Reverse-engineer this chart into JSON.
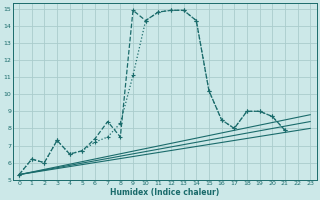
{
  "bg_color": "#cce8e8",
  "grid_color": "#aacccc",
  "line_color": "#1a6b6b",
  "xlabel": "Humidex (Indice chaleur)",
  "xlim": [
    -0.5,
    23.5
  ],
  "ylim": [
    5,
    15.3
  ],
  "xticks": [
    0,
    1,
    2,
    3,
    4,
    5,
    6,
    7,
    8,
    9,
    10,
    11,
    12,
    13,
    14,
    15,
    16,
    17,
    18,
    19,
    20,
    21,
    22,
    23
  ],
  "yticks": [
    5,
    6,
    7,
    8,
    9,
    10,
    11,
    12,
    13,
    14,
    15
  ],
  "curve_dash_x": [
    0,
    1,
    2,
    3,
    4,
    5,
    6,
    7,
    8,
    9,
    10,
    11,
    12,
    13,
    14,
    15,
    16,
    17,
    18,
    19,
    20,
    21
  ],
  "curve_dash_y": [
    5.3,
    6.2,
    6.0,
    7.3,
    6.5,
    6.7,
    7.4,
    8.4,
    7.5,
    14.9,
    14.3,
    14.8,
    14.9,
    14.9,
    14.3,
    10.2,
    8.5,
    8.0,
    9.0,
    9.0,
    8.7,
    7.9
  ],
  "curve_dot_x": [
    0,
    1,
    2,
    3,
    4,
    5,
    6,
    7,
    8,
    9,
    10,
    11,
    12,
    13,
    14,
    15,
    16,
    17,
    18,
    19,
    20,
    21
  ],
  "curve_dot_y": [
    5.3,
    6.2,
    6.0,
    7.3,
    6.5,
    6.7,
    7.2,
    7.5,
    8.3,
    11.1,
    14.3,
    14.8,
    14.9,
    14.9,
    14.3,
    10.2,
    8.5,
    8.0,
    9.0,
    9.0,
    8.7,
    7.9
  ],
  "line1_x": [
    0,
    23
  ],
  "line1_y": [
    5.3,
    8.0
  ],
  "line2_x": [
    0,
    23
  ],
  "line2_y": [
    5.3,
    8.4
  ],
  "line3_x": [
    0,
    23
  ],
  "line3_y": [
    5.3,
    8.8
  ]
}
